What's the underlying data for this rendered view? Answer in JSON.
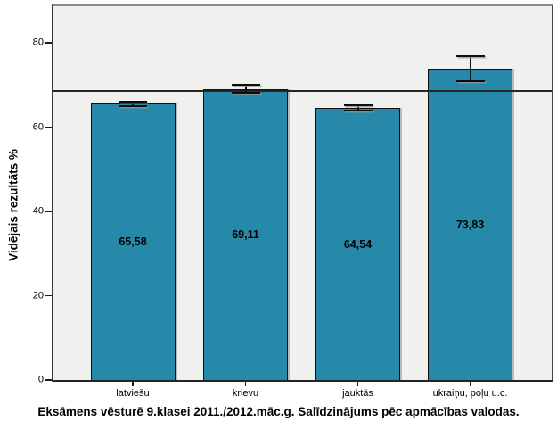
{
  "chart_data": {
    "type": "bar",
    "title": "",
    "caption": "Eksāmens vēsturē 9.klasei 2011./2012.māc.g. Salīdzinājums pēc apmācības valodas.",
    "ylabel": "Vidējais rezultāts %",
    "xlabel": "",
    "categories": [
      "latviešu",
      "krievu",
      "jauktās",
      "ukraiņu, poļu u.c."
    ],
    "values": [
      65.58,
      69.11,
      64.54,
      73.83
    ],
    "value_labels": [
      "65,58",
      "69,11",
      "64,54",
      "73,83"
    ],
    "error_low": [
      65.05,
      68.2,
      63.85,
      71.0
    ],
    "error_high": [
      66.1,
      70.0,
      65.25,
      76.9
    ],
    "reference_line": 68.6,
    "y_ticks": [
      0,
      20,
      40,
      60,
      80
    ],
    "ylim": [
      0,
      88.7
    ],
    "grid": false,
    "legend": "none",
    "bar_color": "#2789A9",
    "plot_bg": "#F0F0EF",
    "axis_color": "#000000",
    "error_bar_color": "#0e0e0e"
  }
}
